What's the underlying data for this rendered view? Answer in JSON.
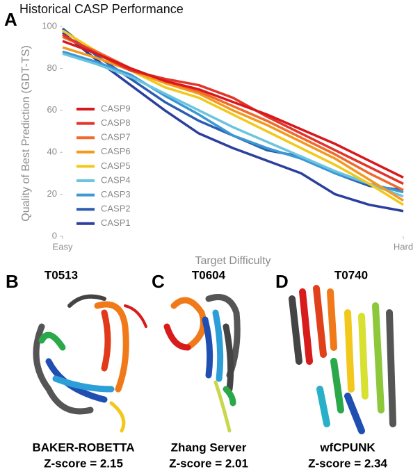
{
  "chart_data": {
    "type": "line",
    "panel": "A",
    "title": "Historical CASP Performance",
    "x_label": "Target Difficulty",
    "y_label": "Quality of Best Prediction (GDT-TS)",
    "x": [
      0,
      0.1,
      0.2,
      0.3,
      0.4,
      0.5,
      0.6,
      0.7,
      0.8,
      0.9,
      1
    ],
    "xlim": [
      0,
      1
    ],
    "xticks": [
      {
        "value": 0,
        "label": "Easy"
      },
      {
        "value": 1,
        "label": "Hard"
      }
    ],
    "ylim": [
      0,
      100
    ],
    "yticks": [
      0,
      20,
      40,
      60,
      80,
      100
    ],
    "series": [
      {
        "name": "CASP9",
        "color": "#d7191c",
        "values": [
          93,
          87,
          80,
          74,
          70,
          64,
          58,
          51,
          44,
          36,
          28
        ]
      },
      {
        "name": "CASP8",
        "color": "#e3342a",
        "values": [
          96,
          87,
          79,
          75,
          72,
          66,
          57,
          49,
          41,
          33,
          25
        ]
      },
      {
        "name": "CASP7",
        "color": "#ef6a2c",
        "values": [
          95,
          88,
          80,
          74,
          69,
          62,
          55,
          47,
          39,
          30,
          22
        ]
      },
      {
        "name": "CASP6",
        "color": "#f39a1e",
        "values": [
          90,
          85,
          79,
          73,
          68,
          60,
          53,
          45,
          37,
          27,
          17
        ]
      },
      {
        "name": "CASP5",
        "color": "#f2c81c",
        "values": [
          98,
          88,
          79,
          71,
          66,
          58,
          50,
          42,
          34,
          25,
          15
        ]
      },
      {
        "name": "CASP4",
        "color": "#6cc4df",
        "values": [
          87,
          82,
          76,
          68,
          60,
          52,
          45,
          38,
          31,
          25,
          19
        ]
      },
      {
        "name": "CASP3",
        "color": "#3a98d4",
        "values": [
          88,
          83,
          77,
          67,
          58,
          48,
          42,
          37,
          30,
          25,
          21
        ]
      },
      {
        "name": "CASP2",
        "color": "#2c5db0",
        "values": [
          99,
          86,
          75,
          64,
          55,
          48,
          41,
          38,
          30,
          24,
          22
        ]
      },
      {
        "name": "CASP1",
        "color": "#2b3f9e",
        "values": [
          97,
          84,
          72,
          60,
          49,
          42,
          36,
          30,
          20,
          15,
          12
        ]
      }
    ]
  },
  "panels": [
    {
      "letter": "B",
      "target": "T0513",
      "method": "BAKER-ROBETTA",
      "zscore": "Z-score = 2.15"
    },
    {
      "letter": "C",
      "target": "T0604",
      "method": "Zhang Server",
      "zscore": "Z-score = 2.01"
    },
    {
      "letter": "D",
      "target": "T0740",
      "method": "wfCPUNK",
      "zscore": "Z-score = 2.34"
    }
  ]
}
